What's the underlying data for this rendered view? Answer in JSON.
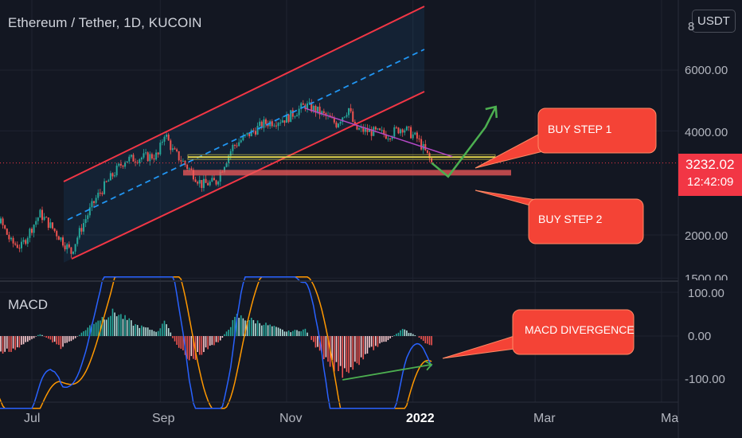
{
  "header": {
    "symbol_title": "Ethereum / Tether, 1D, KUCOIN",
    "currency": "USDT"
  },
  "price_axis": {
    "labels": [
      "8",
      "6000.00",
      "4000.00",
      "2000.00",
      "1500.00"
    ]
  },
  "last_price": {
    "value": "3232.02",
    "countdown": "12:42:09"
  },
  "macd_panel": {
    "label": "MACD",
    "axis_labels": [
      "100.00",
      "0.00",
      "-100.00"
    ]
  },
  "time_axis": {
    "labels": [
      "Jul",
      "Sep",
      "Nov",
      "2022",
      "Mar",
      "Ma"
    ]
  },
  "annotations": {
    "buy_step_1": "BUY STEP 1",
    "buy_step_2": "BUY STEP 2",
    "macd_divergence": "MACD DIVERGENCE"
  },
  "colors": {
    "background": "#131722",
    "candle_up": "#26a69a",
    "candle_down": "#ef5350",
    "channel": "#f23645",
    "channel_mid": "#2196f3",
    "support_1": "#e6d84e",
    "support_2": "#f05a5a",
    "trendline": "#b548c6",
    "projection": "#4caf50",
    "callout": "#f44336",
    "macd_line": "#2962ff",
    "signal_line": "#ff9800"
  },
  "chart_data": [
    {
      "type": "candlestick",
      "symbol": "ETH/USDT",
      "timeframe": "1D",
      "exchange": "KUCOIN",
      "y_scale": "log",
      "ylim": [
        1500,
        8000
      ],
      "yticks": [
        1500,
        2000,
        4000,
        6000
      ],
      "last_price": 3232.02,
      "price_path": [
        [
          "2021-06-01",
          2600
        ],
        [
          "2021-06-10",
          2500
        ],
        [
          "2021-06-21",
          1900
        ],
        [
          "2021-06-26",
          1850
        ],
        [
          "2021-07-05",
          2300
        ],
        [
          "2021-07-15",
          1950
        ],
        [
          "2021-07-20",
          1780
        ],
        [
          "2021-08-01",
          2550
        ],
        [
          "2021-08-15",
          3300
        ],
        [
          "2021-08-31",
          3400
        ],
        [
          "2021-09-03",
          3950
        ],
        [
          "2021-09-07",
          3500
        ],
        [
          "2021-09-21",
          2800
        ],
        [
          "2021-09-28",
          2850
        ],
        [
          "2021-10-06",
          3600
        ],
        [
          "2021-10-21",
          4200
        ],
        [
          "2021-11-01",
          4350
        ],
        [
          "2021-11-10",
          4750
        ],
        [
          "2021-11-15",
          4600
        ],
        [
          "2021-11-25",
          4200
        ],
        [
          "2021-12-01",
          4650
        ],
        [
          "2021-12-04",
          4050
        ],
        [
          "2021-12-10",
          4000
        ],
        [
          "2021-12-20",
          3900
        ],
        [
          "2021-12-27",
          4100
        ],
        [
          "2022-01-03",
          3800
        ],
        [
          "2022-01-10",
          3232
        ]
      ],
      "drawings": {
        "ascending_channel": true,
        "support_levels": [
          3360,
          3020
        ],
        "descending_trendline": [
          [
            "2021-11-10",
            4650
          ],
          [
            "2022-01-20",
            3370
          ]
        ],
        "projection_path": [
          [
            "2022-01-10",
            3232
          ],
          [
            "2022-01-18",
            2950
          ],
          [
            "2022-02-05",
            4100
          ],
          [
            "2022-02-10",
            4700
          ]
        ]
      }
    },
    {
      "type": "macd",
      "ylim": [
        -170,
        140
      ],
      "yticks": [
        -100,
        0,
        100
      ],
      "histogram": [
        [
          "2021-06-01",
          -20
        ],
        [
          "2021-06-15",
          -40
        ],
        [
          "2021-06-25",
          -25
        ],
        [
          "2021-07-05",
          5
        ],
        [
          "2021-07-15",
          -25
        ],
        [
          "2021-07-22",
          -5
        ],
        [
          "2021-08-01",
          35
        ],
        [
          "2021-08-10",
          55
        ],
        [
          "2021-08-20",
          25
        ],
        [
          "2021-08-31",
          10
        ],
        [
          "2021-09-03",
          40
        ],
        [
          "2021-09-08",
          -15
        ],
        [
          "2021-09-15",
          -55
        ],
        [
          "2021-09-22",
          -35
        ],
        [
          "2021-09-30",
          -10
        ],
        [
          "2021-10-08",
          45
        ],
        [
          "2021-10-20",
          30
        ],
        [
          "2021-11-01",
          10
        ],
        [
          "2021-11-10",
          15
        ],
        [
          "2021-11-20",
          -60
        ],
        [
          "2021-11-28",
          -80
        ],
        [
          "2021-12-04",
          -65
        ],
        [
          "2021-12-10",
          -35
        ],
        [
          "2021-12-18",
          -15
        ],
        [
          "2021-12-27",
          15
        ],
        [
          "2022-01-03",
          0
        ],
        [
          "2022-01-10",
          -25
        ]
      ],
      "divergence_line": [
        [
          "2021-11-28",
          -100
        ],
        [
          "2022-01-10",
          -65
        ]
      ]
    }
  ]
}
